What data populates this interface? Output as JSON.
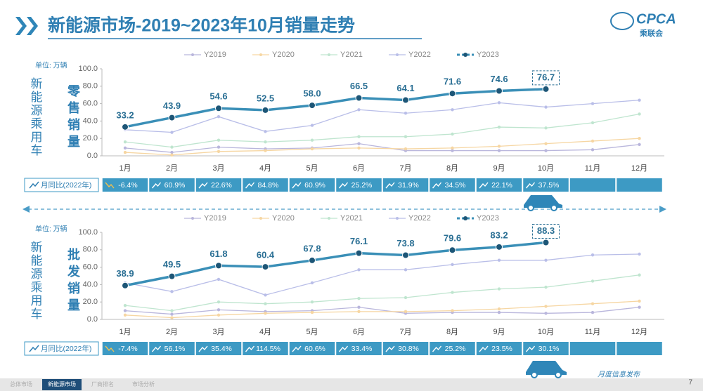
{
  "header": {
    "title": "新能源市场-2019~2023年10月销量走势",
    "logo": "CPCA",
    "logo_sub": "乘联会"
  },
  "footer": {
    "tabs": [
      "总体市场",
      "新能源市场",
      "厂商排名",
      "市场分析"
    ],
    "note": "月度信息发布",
    "page": "7"
  },
  "chart_data": [
    {
      "type": "line",
      "unit": "单位: 万辆",
      "side_label": "新能源乘用车",
      "metric": "零售销量",
      "categories": [
        "1月",
        "2月",
        "3月",
        "4月",
        "5月",
        "6月",
        "7月",
        "8月",
        "9月",
        "10月",
        "11月",
        "12月"
      ],
      "ylim": [
        0,
        100
      ],
      "yticks": [
        {
          "value": 0,
          "label": "0.0"
        },
        {
          "value": 20,
          "label": "20.0"
        },
        {
          "value": 40,
          "label": "40.0"
        },
        {
          "value": 60,
          "label": "60.0"
        },
        {
          "value": 80,
          "label": "80.0"
        },
        {
          "value": 100,
          "label": "100.0"
        }
      ],
      "grid": false,
      "series": [
        {
          "name": "Y2019",
          "color": "#b9b6dc",
          "values": [
            9,
            4,
            10,
            8,
            9,
            14,
            6,
            6,
            6,
            6,
            7,
            13
          ]
        },
        {
          "name": "Y2020",
          "color": "#f6d6a2",
          "values": [
            4,
            1,
            5,
            6,
            8,
            9,
            8,
            9,
            11,
            14,
            17,
            20
          ]
        },
        {
          "name": "Y2021",
          "color": "#bfe5cf",
          "values": [
            16,
            10,
            18,
            16,
            18,
            22,
            22,
            25,
            33,
            32,
            38,
            48
          ]
        },
        {
          "name": "Y2022",
          "color": "#b9bee8",
          "values": [
            30,
            27,
            45,
            28,
            35,
            53,
            49,
            53,
            61,
            56,
            60,
            64
          ]
        },
        {
          "name": "Y2023",
          "color": "#3a8fb7",
          "values": [
            33.2,
            43.9,
            54.6,
            52.5,
            58.0,
            66.5,
            64.1,
            71.6,
            74.6,
            76.7,
            null,
            null
          ],
          "value_labels": [
            "33.2",
            "43.9",
            "54.6",
            "52.5",
            "58.0",
            "66.5",
            "64.1",
            "71.6",
            "74.6",
            "76.7",
            null,
            null
          ]
        }
      ],
      "yoy": {
        "label": "月同比(2022年)",
        "values": [
          -6.4,
          60.9,
          22.6,
          84.8,
          60.9,
          25.2,
          31.9,
          34.5,
          22.1,
          37.5,
          null,
          null
        ],
        "value_labels": [
          "-6.4%",
          "60.9%",
          "22.6%",
          "84.8%",
          "60.9%",
          "25.2%",
          "31.9%",
          "34.5%",
          "22.1%",
          "37.5%",
          null,
          null
        ]
      }
    },
    {
      "type": "line",
      "unit": "单位: 万辆",
      "side_label": "新能源乘用车",
      "metric": "批发销量",
      "categories": [
        "1月",
        "2月",
        "3月",
        "4月",
        "5月",
        "6月",
        "7月",
        "8月",
        "9月",
        "10月",
        "11月",
        "12月"
      ],
      "ylim": [
        0,
        100
      ],
      "yticks": [
        {
          "value": 0,
          "label": "0.0"
        },
        {
          "value": 20,
          "label": "20.0"
        },
        {
          "value": 40,
          "label": "40.0"
        },
        {
          "value": 60,
          "label": "60.0"
        },
        {
          "value": 80,
          "label": "80.0"
        },
        {
          "value": 100,
          "label": "100.0"
        }
      ],
      "grid": false,
      "series": [
        {
          "name": "Y2019",
          "color": "#b9b6dc",
          "values": [
            10,
            6,
            11,
            9,
            10,
            14,
            7,
            8,
            8,
            7,
            8,
            14
          ]
        },
        {
          "name": "Y2020",
          "color": "#f6d6a2",
          "values": [
            5,
            2,
            5,
            7,
            8,
            9,
            9,
            10,
            12,
            15,
            18,
            21
          ]
        },
        {
          "name": "Y2021",
          "color": "#bfe5cf",
          "values": [
            16,
            10,
            20,
            18,
            20,
            24,
            25,
            31,
            35,
            37,
            44,
            51
          ]
        },
        {
          "name": "Y2022",
          "color": "#b9bee8",
          "values": [
            42,
            32,
            46,
            28,
            42,
            57,
            57,
            63,
            68,
            68,
            74,
            75
          ]
        },
        {
          "name": "Y2023",
          "color": "#3a8fb7",
          "values": [
            38.9,
            49.5,
            61.8,
            60.4,
            67.8,
            76.1,
            73.8,
            79.6,
            83.2,
            88.3,
            null,
            null
          ]
        }
      ],
      "yoy": {
        "label": "月同比(2022年)",
        "values": [
          -7.4,
          56.1,
          35.4,
          114.5,
          60.6,
          33.4,
          30.8,
          25.2,
          23.5,
          30.1,
          null,
          null
        ],
        "value_labels": [
          "-7.4%",
          "56.1%",
          "35.4%",
          "114.5%",
          "60.6%",
          "33.4%",
          "30.8%",
          "25.2%",
          "23.5%",
          "30.1%",
          null,
          null
        ]
      }
    }
  ]
}
